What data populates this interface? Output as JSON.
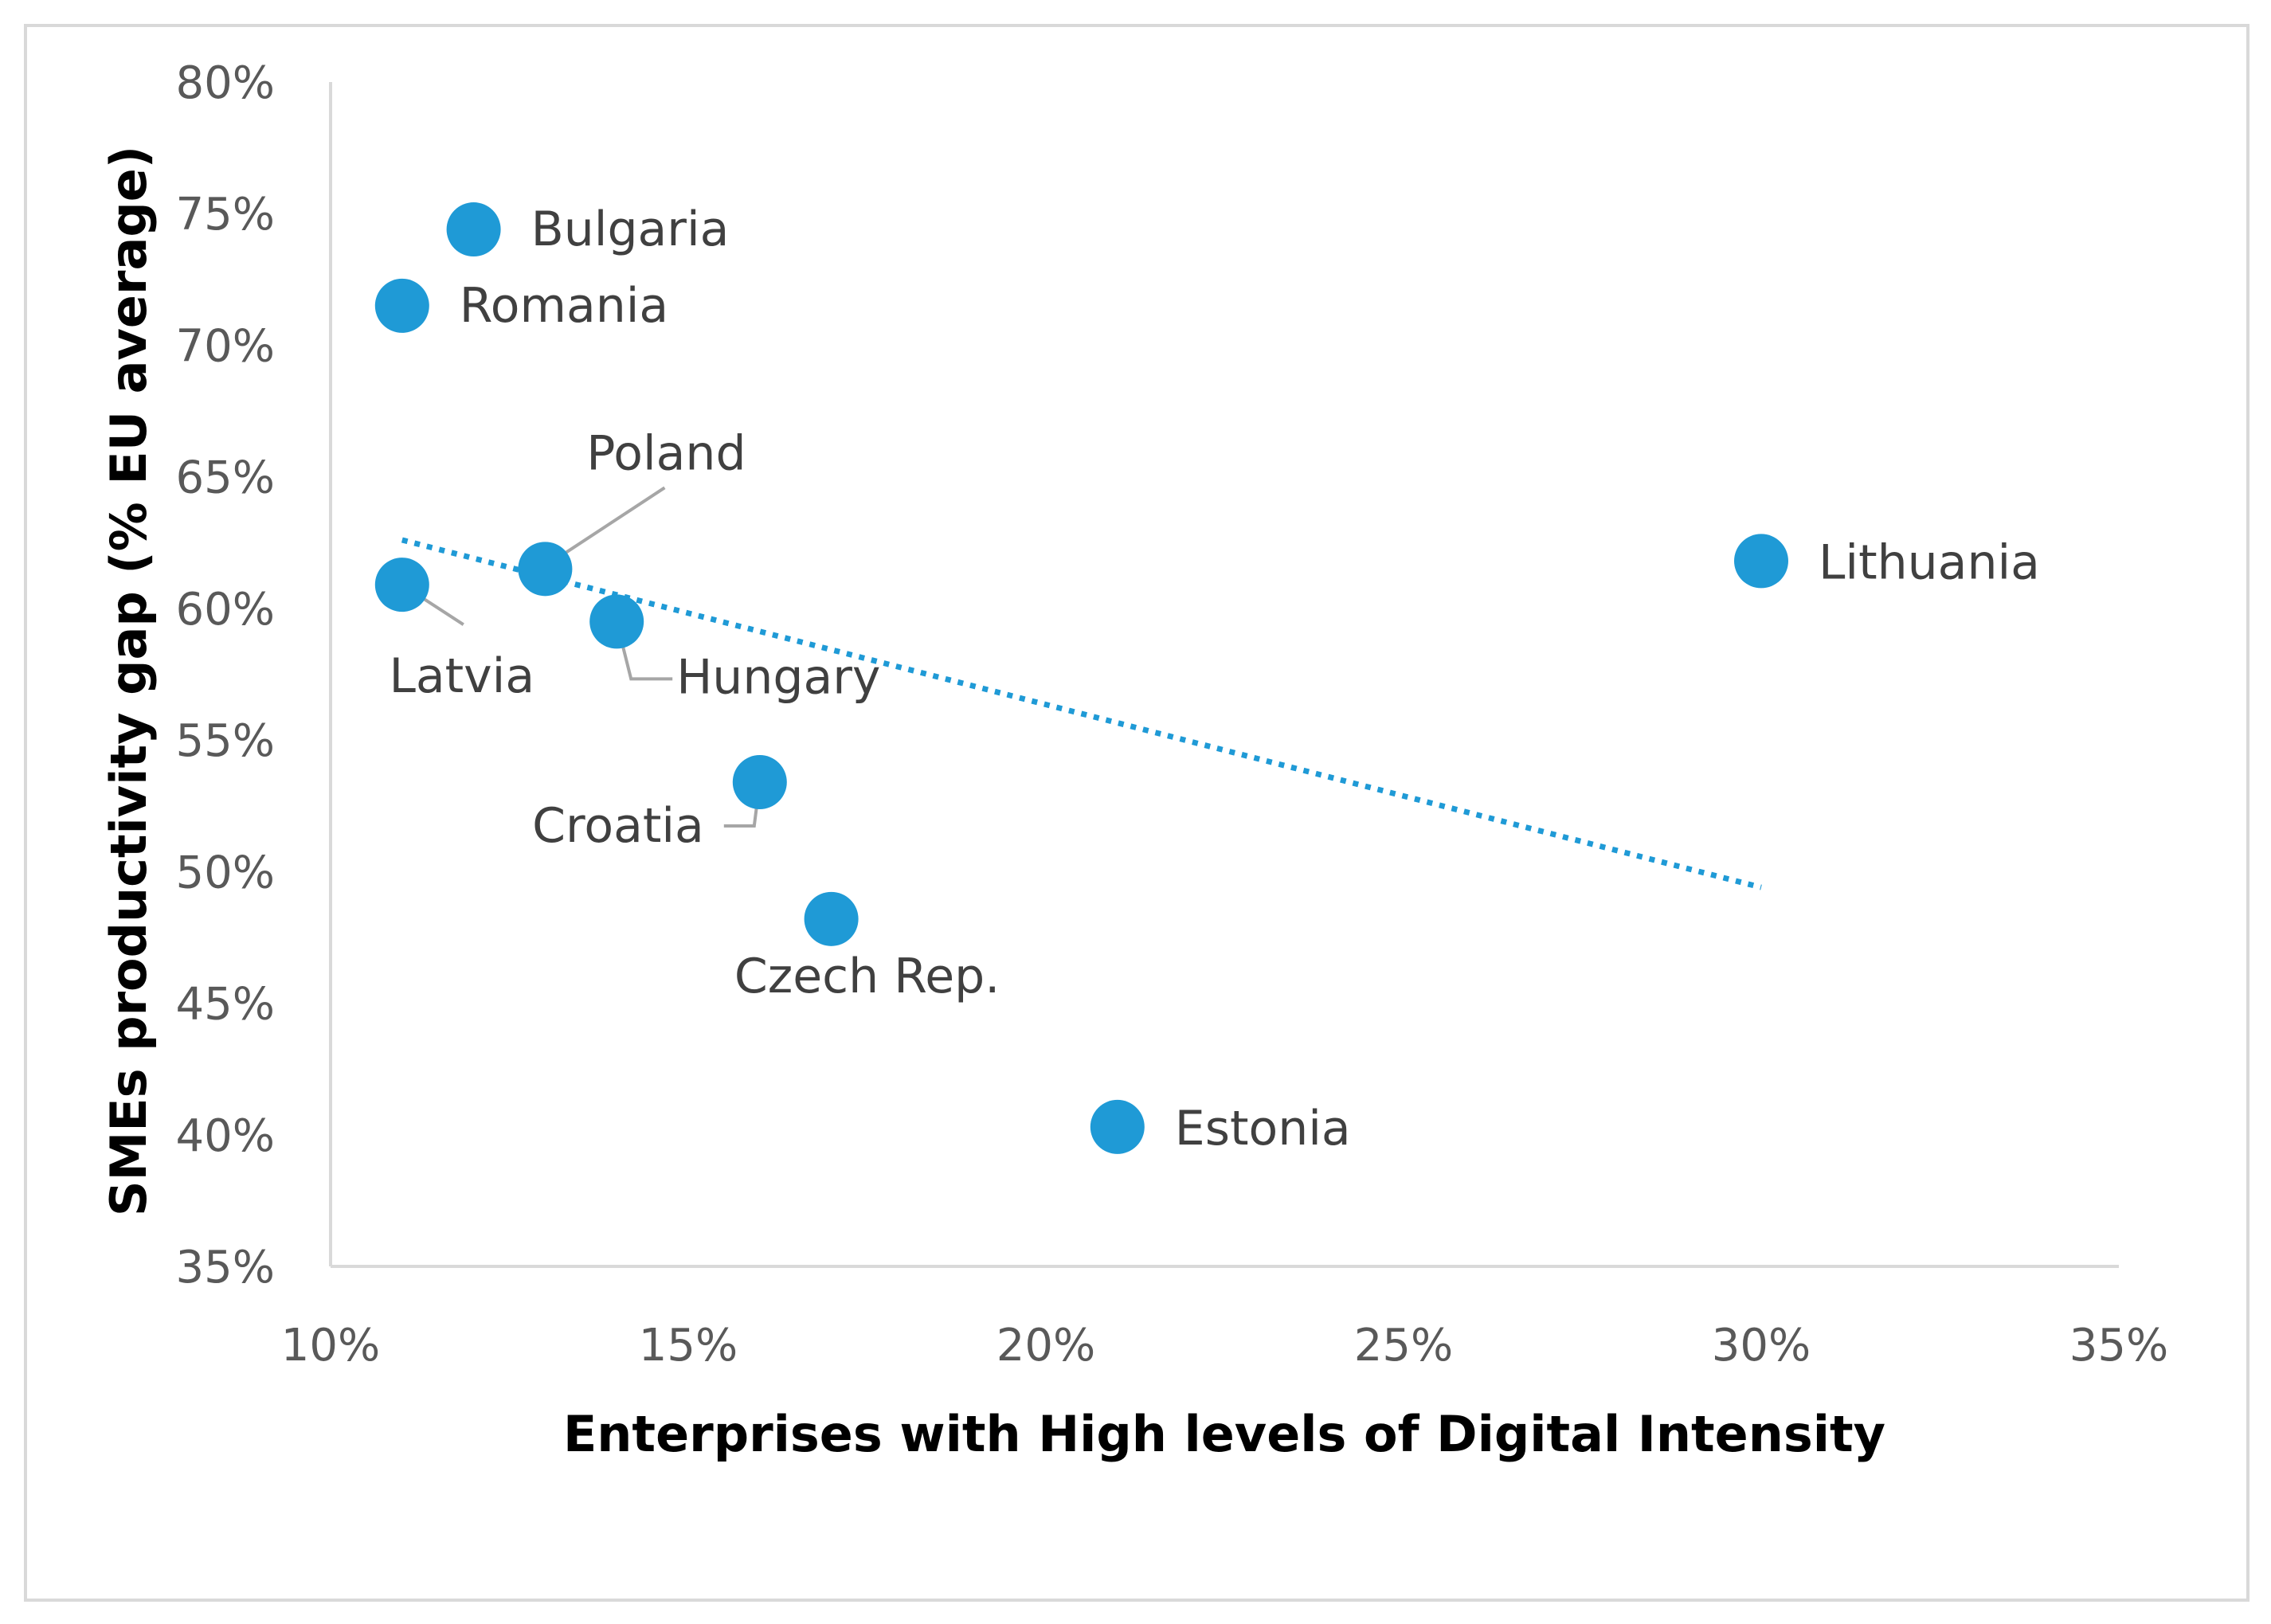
{
  "chart_data": {
    "type": "scatter",
    "title": "",
    "xlabel": "Enterprises with High levels of Digital Intensity",
    "ylabel": "SMEs productivity gap (% EU average)",
    "xlim": [
      0.1,
      0.35
    ],
    "ylim": [
      0.35,
      0.8
    ],
    "x_ticks": [
      0.1,
      0.15,
      0.2,
      0.25,
      0.3,
      0.35
    ],
    "x_tick_labels": [
      "10%",
      "15%",
      "20%",
      "25%",
      "30%",
      "35%"
    ],
    "y_ticks": [
      0.35,
      0.4,
      0.45,
      0.5,
      0.55,
      0.6,
      0.65,
      0.7,
      0.75,
      0.8
    ],
    "y_tick_labels": [
      "35%",
      "40%",
      "45%",
      "50%",
      "55%",
      "60%",
      "65%",
      "70%",
      "75%",
      "80%"
    ],
    "grid": false,
    "legend": "none",
    "series": [
      {
        "points": [
          {
            "label": "Bulgaria",
            "x": 0.12,
            "y": 0.744
          },
          {
            "label": "Romania",
            "x": 0.11,
            "y": 0.715
          },
          {
            "label": "Poland",
            "x": 0.13,
            "y": 0.615
          },
          {
            "label": "Latvia",
            "x": 0.11,
            "y": 0.609
          },
          {
            "label": "Hungary",
            "x": 0.14,
            "y": 0.595
          },
          {
            "label": "Lithuania",
            "x": 0.3,
            "y": 0.618
          },
          {
            "label": "Croatia",
            "x": 0.16,
            "y": 0.534
          },
          {
            "label": "Czech Rep.",
            "x": 0.17,
            "y": 0.482
          },
          {
            "label": "Estonia",
            "x": 0.21,
            "y": 0.403
          }
        ]
      }
    ],
    "trendline": {
      "type": "linear",
      "style": "dotted",
      "start": {
        "x": 0.11,
        "y": 0.626
      },
      "end": {
        "x": 0.3,
        "y": 0.494
      }
    },
    "colors": {
      "marker": "#1f9ad6",
      "trendline": "#1f9ad6",
      "axis": "#d9d9d9",
      "leader": "#a6a6a6"
    }
  }
}
